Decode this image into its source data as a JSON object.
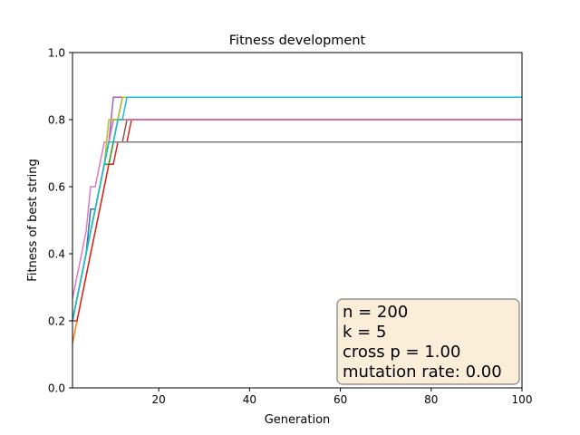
{
  "chart_data": {
    "type": "line",
    "title": "Fitness development",
    "xlabel": "Generation",
    "ylabel": "Fitness of best string",
    "xlim": [
      1,
      100
    ],
    "ylim": [
      0.0,
      1.0
    ],
    "x_ticks": [
      20,
      40,
      60,
      80,
      100
    ],
    "y_ticks": [
      0.0,
      0.2,
      0.4,
      0.6,
      0.8,
      1.0
    ],
    "x_tick_labels": [
      "20",
      "40",
      "60",
      "80",
      "100"
    ],
    "y_tick_labels": [
      "0.0",
      "0.2",
      "0.4",
      "0.6",
      "0.8",
      "1.0"
    ],
    "grid": false,
    "legend": "none",
    "annotation": {
      "lines": [
        "n = 200",
        "k = 5",
        "cross p = 1.00",
        "mutation rate: 0.00"
      ],
      "placement": "bottom-right",
      "background": "#f5deb3"
    },
    "series": [
      {
        "color": "#1f77b4",
        "points": [
          [
            1,
            0.2
          ],
          [
            2,
            0.267
          ],
          [
            3,
            0.333
          ],
          [
            4,
            0.4
          ],
          [
            5,
            0.533
          ],
          [
            6,
            0.533
          ],
          [
            7,
            0.6
          ],
          [
            8,
            0.667
          ],
          [
            9,
            0.733
          ],
          [
            10,
            0.8
          ],
          [
            11,
            0.8
          ],
          [
            12,
            0.867
          ],
          [
            100,
            0.867
          ]
        ]
      },
      {
        "color": "#ff7f0e",
        "points": [
          [
            1,
            0.133
          ],
          [
            2,
            0.2
          ],
          [
            3,
            0.267
          ],
          [
            4,
            0.333
          ],
          [
            5,
            0.4
          ],
          [
            6,
            0.467
          ],
          [
            7,
            0.533
          ],
          [
            8,
            0.6
          ],
          [
            9,
            0.667
          ],
          [
            10,
            0.733
          ],
          [
            11,
            0.8
          ],
          [
            100,
            0.8
          ]
        ]
      },
      {
        "color": "#2ca02c",
        "points": [
          [
            1,
            0.2
          ],
          [
            2,
            0.267
          ],
          [
            3,
            0.333
          ],
          [
            4,
            0.4
          ],
          [
            5,
            0.467
          ],
          [
            6,
            0.533
          ],
          [
            7,
            0.6
          ],
          [
            8,
            0.667
          ],
          [
            9,
            0.667
          ],
          [
            10,
            0.733
          ],
          [
            11,
            0.8
          ],
          [
            100,
            0.8
          ]
        ]
      },
      {
        "color": "#d62728",
        "points": [
          [
            1,
            0.2
          ],
          [
            2,
            0.2
          ],
          [
            3,
            0.267
          ],
          [
            4,
            0.333
          ],
          [
            5,
            0.4
          ],
          [
            6,
            0.467
          ],
          [
            7,
            0.533
          ],
          [
            8,
            0.6
          ],
          [
            9,
            0.667
          ],
          [
            10,
            0.667
          ],
          [
            11,
            0.733
          ],
          [
            12,
            0.733
          ],
          [
            13,
            0.733
          ],
          [
            14,
            0.8
          ],
          [
            100,
            0.8
          ]
        ]
      },
      {
        "color": "#9467bd",
        "points": [
          [
            1,
            0.2
          ],
          [
            2,
            0.267
          ],
          [
            3,
            0.333
          ],
          [
            4,
            0.4
          ],
          [
            5,
            0.467
          ],
          [
            6,
            0.533
          ],
          [
            7,
            0.6
          ],
          [
            8,
            0.667
          ],
          [
            9,
            0.733
          ],
          [
            10,
            0.867
          ],
          [
            100,
            0.867
          ]
        ]
      },
      {
        "color": "#8c564b",
        "points": [
          [
            1,
            0.2
          ],
          [
            2,
            0.267
          ],
          [
            3,
            0.333
          ],
          [
            4,
            0.4
          ],
          [
            5,
            0.467
          ],
          [
            6,
            0.533
          ],
          [
            7,
            0.6
          ],
          [
            8,
            0.667
          ],
          [
            9,
            0.733
          ],
          [
            10,
            0.733
          ],
          [
            11,
            0.733
          ],
          [
            12,
            0.733
          ],
          [
            13,
            0.8
          ],
          [
            100,
            0.8
          ]
        ]
      },
      {
        "color": "#e377c2",
        "points": [
          [
            1,
            0.267
          ],
          [
            2,
            0.333
          ],
          [
            3,
            0.4
          ],
          [
            4,
            0.467
          ],
          [
            5,
            0.6
          ],
          [
            6,
            0.6
          ],
          [
            7,
            0.667
          ],
          [
            8,
            0.733
          ],
          [
            9,
            0.733
          ],
          [
            10,
            0.8
          ],
          [
            100,
            0.8
          ]
        ]
      },
      {
        "color": "#7f7f7f",
        "points": [
          [
            1,
            0.2
          ],
          [
            2,
            0.267
          ],
          [
            3,
            0.333
          ],
          [
            4,
            0.4
          ],
          [
            5,
            0.467
          ],
          [
            6,
            0.533
          ],
          [
            7,
            0.6
          ],
          [
            8,
            0.667
          ],
          [
            9,
            0.733
          ],
          [
            100,
            0.733
          ]
        ]
      },
      {
        "color": "#bcbd22",
        "points": [
          [
            1,
            0.2
          ],
          [
            2,
            0.267
          ],
          [
            3,
            0.333
          ],
          [
            4,
            0.4
          ],
          [
            5,
            0.467
          ],
          [
            6,
            0.533
          ],
          [
            7,
            0.6
          ],
          [
            8,
            0.667
          ],
          [
            9,
            0.8
          ],
          [
            10,
            0.8
          ],
          [
            11,
            0.8
          ],
          [
            12,
            0.867
          ],
          [
            100,
            0.867
          ]
        ]
      },
      {
        "color": "#17becf",
        "points": [
          [
            1,
            0.2
          ],
          [
            2,
            0.267
          ],
          [
            3,
            0.333
          ],
          [
            4,
            0.4
          ],
          [
            5,
            0.467
          ],
          [
            6,
            0.533
          ],
          [
            7,
            0.6
          ],
          [
            8,
            0.667
          ],
          [
            9,
            0.733
          ],
          [
            10,
            0.733
          ],
          [
            11,
            0.8
          ],
          [
            12,
            0.8
          ],
          [
            13,
            0.867
          ],
          [
            100,
            0.867
          ]
        ]
      }
    ]
  }
}
